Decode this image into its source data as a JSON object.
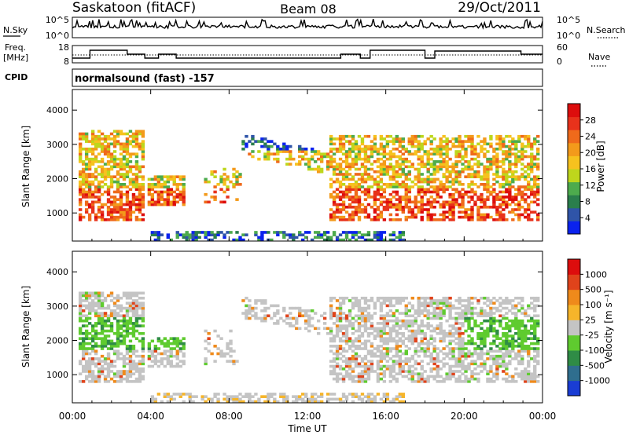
{
  "header": {
    "station": "Saskatoon (fitACF)",
    "beam": "Beam 08",
    "date": "29/Oct/2011"
  },
  "strips": {
    "noise": {
      "left_label": "N.Sky",
      "right_label": "N.Search",
      "left_ticks": [
        "10^5",
        "10^0"
      ],
      "right_ticks": [
        "10^5",
        "10^0"
      ]
    },
    "freq": {
      "left_label_1": "Freq.",
      "left_label_2": "[MHz]",
      "right_label": "Nave",
      "left_ticks": [
        "18",
        "8"
      ],
      "right_ticks": [
        "60",
        "0"
      ]
    },
    "cpid": {
      "label": "CPID",
      "value": "normalsound (fast) -157"
    }
  },
  "chart_data": [
    {
      "type": "heatmap",
      "name": "power",
      "ylabel": "Slant Range [km]",
      "ylim": [
        180,
        4600
      ],
      "yticks": [
        1000,
        2000,
        3000,
        4000
      ],
      "xlim": [
        0,
        24
      ],
      "colorbar": {
        "label": "Power [dB]",
        "ticks": [
          "4",
          "8",
          "12",
          "16",
          "20",
          "24",
          "28"
        ],
        "colors": [
          "#0a22ee",
          "#2f54a8",
          "#2a7e4c",
          "#4dab4d",
          "#bed61c",
          "#f6c21e",
          "#f39a1b",
          "#ef6a1b",
          "#e8321b",
          "#dd0d0d"
        ]
      }
    },
    {
      "type": "heatmap",
      "name": "velocity",
      "ylabel": "Slant Range [km]",
      "ylim": [
        180,
        4600
      ],
      "yticks": [
        1000,
        2000,
        3000,
        4000
      ],
      "xlim": [
        0,
        24
      ],
      "colorbar": {
        "label": "Velocity [m s⁻¹]",
        "ticks": [
          "1000",
          "500",
          "100",
          "25",
          "-25",
          "-100",
          "-500",
          "-1000"
        ],
        "colors": [
          "#1a3dd4",
          "#2f6e8e",
          "#2f8c46",
          "#5fcb2f",
          "#c4c4c4",
          "#f6b52a",
          "#ef8a1b",
          "#e0431b",
          "#dd0d0d"
        ]
      }
    }
  ],
  "xaxis": {
    "label": "Time UT",
    "ticks": [
      "00:00",
      "04:00",
      "08:00",
      "12:00",
      "16:00",
      "20:00",
      "00:00"
    ]
  }
}
